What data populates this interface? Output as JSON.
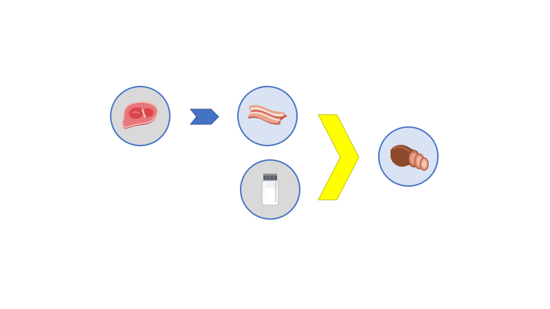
{
  "colors": {
    "circle_border": "#4472c4",
    "raw_fill": "#d9d9d9",
    "ingredient_fill": "#dae3f3",
    "arrow_blue": "#4472c4",
    "arrow_yellow": "#ffff00"
  },
  "nodes": [
    {
      "id": "raw-meat",
      "icon": "steak-icon",
      "fill": "gray"
    },
    {
      "id": "bacon",
      "icon": "bacon-icon",
      "fill": "light-blue"
    },
    {
      "id": "salt",
      "icon": "salt-shaker-icon",
      "fill": "gray"
    },
    {
      "id": "cured-ham",
      "icon": "sliced-ham-icon",
      "fill": "light-blue"
    }
  ],
  "arrows": [
    {
      "icon": "chevron-right-icon",
      "color": "blue",
      "from": "raw-meat",
      "to": "bacon"
    },
    {
      "icon": "chevron-right-icon",
      "color": "yellow",
      "from": "bacon+salt",
      "to": "cured-ham"
    }
  ]
}
